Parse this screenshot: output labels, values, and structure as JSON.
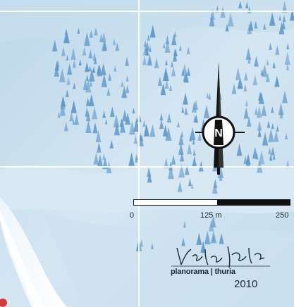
{
  "map": {
    "background_color": "#cfe3f0",
    "forest_color": "#5f98c8"
  },
  "compass": {
    "letter": "N",
    "icon": "north-arrow-icon"
  },
  "scale": {
    "labels": [
      "0",
      "125 m",
      "250"
    ]
  },
  "credit": {
    "brand_left": "planorama",
    "brand_right": "thuria",
    "year": "2010"
  }
}
